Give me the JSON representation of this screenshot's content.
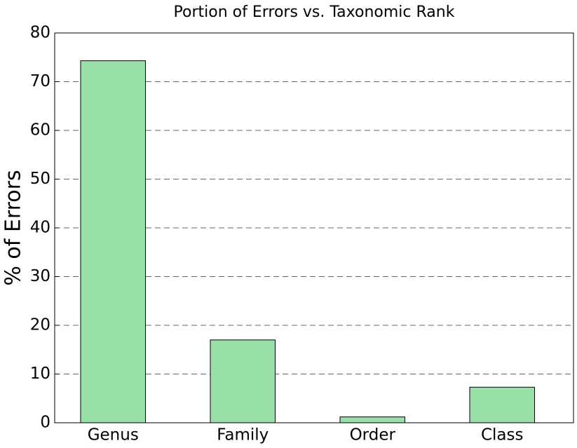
{
  "chart_data": {
    "type": "bar",
    "title": "Portion of Errors vs. Taxonomic Rank",
    "y_label": "% of Errors",
    "categories": [
      "Genus",
      "Family",
      "Order",
      "Class"
    ],
    "values": [
      74.3,
      17.0,
      1.2,
      7.3
    ],
    "color": "#98dfa8",
    "ylim": [
      0,
      80
    ],
    "yticks": [
      0,
      10,
      20,
      30,
      40,
      50,
      60,
      70,
      80
    ],
    "grid": true
  }
}
